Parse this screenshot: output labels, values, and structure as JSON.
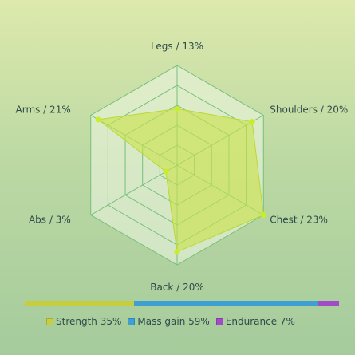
{
  "chart_data": {
    "type": "radar",
    "axes": [
      {
        "label": "Legs / 13%",
        "value": 13
      },
      {
        "label": "Shoulders / 20%",
        "value": 20
      },
      {
        "label": "Chest / 23%",
        "value": 23
      },
      {
        "label": "Back / 20%",
        "value": 20
      },
      {
        "label": "Abs / 3%",
        "value": 3
      },
      {
        "label": "Arms / 21%",
        "value": 21
      }
    ],
    "max": 23,
    "grid_levels": 5,
    "colors": {
      "fill": "#c9e24a",
      "stroke": "#b8d933",
      "point": "#c8ee2a",
      "grid_fill": "#eef6e4",
      "grid_stroke": "#75c07d"
    },
    "summary": [
      {
        "label": "Strength 35%",
        "value": 35,
        "color": "#c6cd3f"
      },
      {
        "label": "Mass gain 59%",
        "value": 59,
        "color": "#3e9fd3"
      },
      {
        "label": "Endurance 7%",
        "value": 7,
        "color": "#a14bc9"
      }
    ]
  }
}
